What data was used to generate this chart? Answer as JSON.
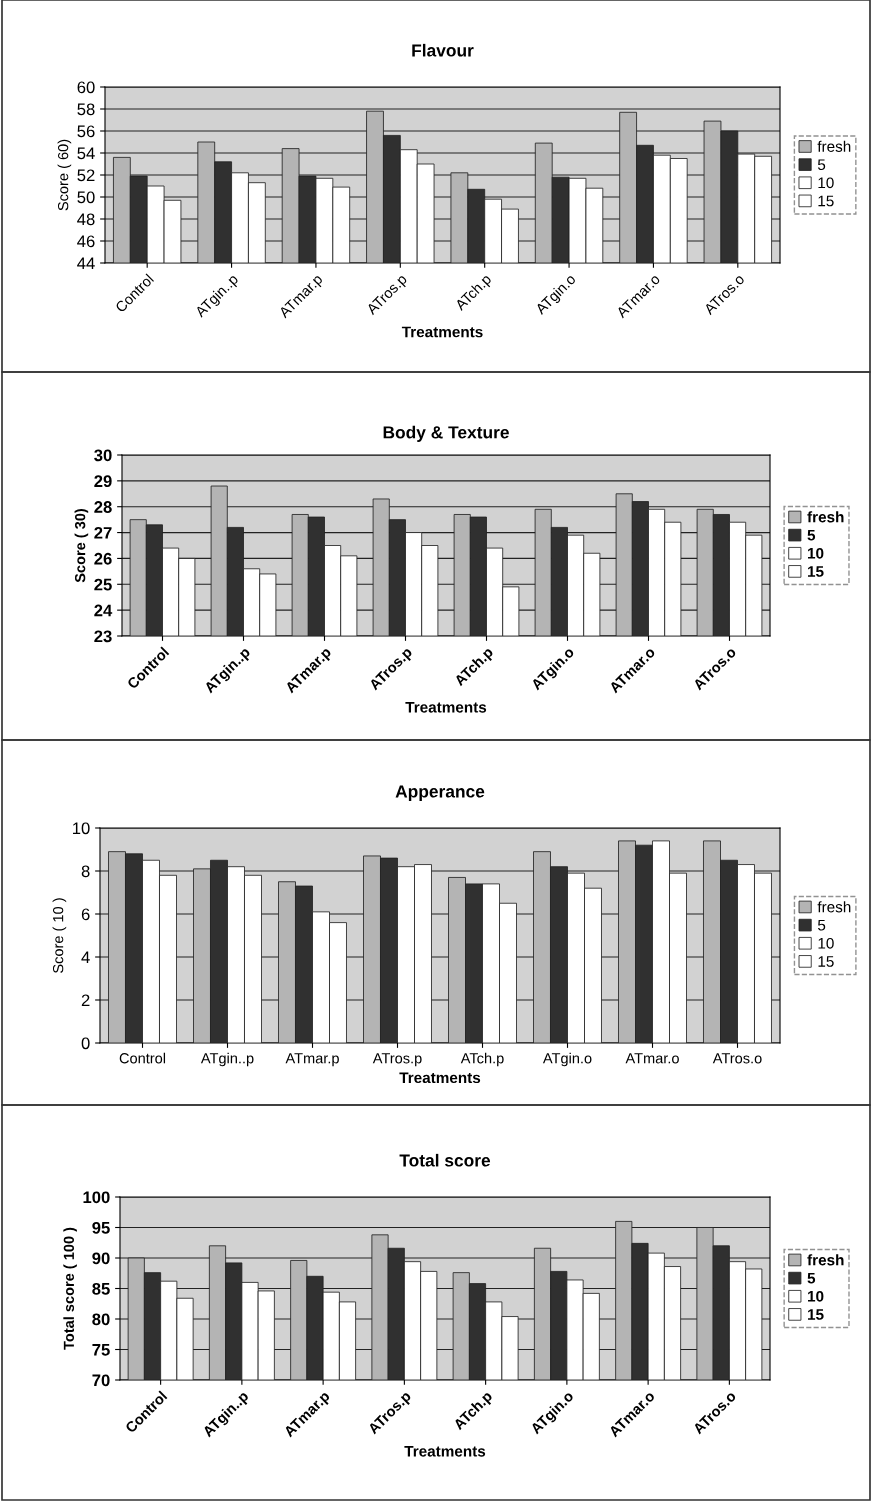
{
  "chart_data": [
    {
      "type": "bar",
      "title": "Flavour",
      "xlabel": "Treatments",
      "ylabel": "Score ( 60)",
      "categories": [
        "Control",
        "ATgin..p",
        "ATmar.p",
        "ATros.p",
        "ATch.p",
        "ATgin.o",
        "ATmar.o",
        "ATros.o"
      ],
      "ylim": [
        44,
        60
      ],
      "yticks": [
        44,
        46,
        48,
        50,
        52,
        54,
        56,
        58,
        60
      ],
      "grid": "y",
      "legend": "right",
      "series": [
        {
          "name": "fresh",
          "color": "#b4b4b4",
          "values": [
            53.6,
            55.0,
            54.4,
            57.8,
            52.2,
            54.9,
            57.7,
            56.9
          ]
        },
        {
          "name": "5",
          "color": "#303030",
          "values": [
            51.9,
            53.2,
            51.9,
            55.6,
            50.7,
            51.8,
            54.7,
            56.0
          ]
        },
        {
          "name": "10",
          "color": "#ffffff",
          "values": [
            51.0,
            52.2,
            51.7,
            54.3,
            49.8,
            51.7,
            53.8,
            53.9
          ]
        },
        {
          "name": "15",
          "color": "#ffffff",
          "values": [
            49.7,
            51.3,
            50.9,
            53.0,
            48.9,
            50.8,
            53.5,
            53.7
          ]
        }
      ]
    },
    {
      "type": "bar",
      "title": "Body & Texture",
      "xlabel": "Treatments",
      "ylabel": "Score ( 30)",
      "categories": [
        "Control",
        "ATgin..p",
        "ATmar.p",
        "ATros.p",
        "ATch.p",
        "ATgin.o",
        "ATmar.o",
        "ATros.o"
      ],
      "ylim": [
        23,
        30
      ],
      "yticks": [
        23,
        24,
        25,
        26,
        27,
        28,
        29,
        30
      ],
      "grid": "y",
      "legend": "right",
      "series": [
        {
          "name": "fresh",
          "color": "#b4b4b4",
          "values": [
            27.5,
            28.8,
            27.7,
            28.3,
            27.7,
            27.9,
            28.5,
            27.9
          ]
        },
        {
          "name": "5",
          "color": "#303030",
          "values": [
            27.3,
            27.2,
            27.6,
            27.5,
            27.6,
            27.2,
            28.2,
            27.7
          ]
        },
        {
          "name": "10",
          "color": "#ffffff",
          "values": [
            26.4,
            25.6,
            26.5,
            27.0,
            26.4,
            26.9,
            27.9,
            27.4
          ]
        },
        {
          "name": "15",
          "color": "#ffffff",
          "values": [
            26.0,
            25.4,
            26.1,
            26.5,
            24.9,
            26.2,
            27.4,
            26.9
          ]
        }
      ]
    },
    {
      "type": "bar",
      "title": "Apperance",
      "xlabel": "Treatments",
      "ylabel": "Score ( 10 )",
      "categories": [
        "Control",
        "ATgin..p",
        "ATmar.p",
        "ATros.p",
        "ATch.p",
        "ATgin.o",
        "ATmar.o",
        "ATros.o"
      ],
      "ylim": [
        0,
        10
      ],
      "yticks": [
        0,
        2,
        4,
        6,
        8,
        10
      ],
      "grid": "y",
      "legend": "right",
      "series": [
        {
          "name": "fresh",
          "color": "#b4b4b4",
          "values": [
            8.9,
            8.1,
            7.5,
            8.7,
            7.7,
            8.9,
            9.4,
            9.4
          ]
        },
        {
          "name": "5",
          "color": "#303030",
          "values": [
            8.8,
            8.5,
            7.3,
            8.6,
            7.4,
            8.2,
            9.2,
            8.5
          ]
        },
        {
          "name": "10",
          "color": "#ffffff",
          "values": [
            8.5,
            8.2,
            6.1,
            8.2,
            7.4,
            7.9,
            9.4,
            8.3
          ]
        },
        {
          "name": "15",
          "color": "#ffffff",
          "values": [
            7.8,
            7.8,
            5.6,
            8.3,
            6.5,
            7.2,
            7.9,
            7.9
          ]
        }
      ]
    },
    {
      "type": "bar",
      "title": "Total score",
      "xlabel": "Treatments",
      "ylabel": "Total score ( 100 )",
      "categories": [
        "Control",
        "ATgin..p",
        "ATmar.p",
        "ATros.p",
        "ATch.p",
        "ATgin.o",
        "ATmar.o",
        "ATros.o"
      ],
      "ylim": [
        70,
        100
      ],
      "yticks": [
        70,
        75,
        80,
        85,
        90,
        95,
        100
      ],
      "grid": "y",
      "legend": "right",
      "series": [
        {
          "name": "fresh",
          "color": "#b4b4b4",
          "values": [
            90.0,
            92.0,
            89.6,
            93.8,
            87.6,
            91.6,
            96.0,
            95.0
          ]
        },
        {
          "name": "5",
          "color": "#303030",
          "values": [
            87.6,
            89.2,
            87.0,
            91.6,
            85.8,
            87.8,
            92.4,
            92.0
          ]
        },
        {
          "name": "10",
          "color": "#ffffff",
          "values": [
            86.2,
            86.0,
            84.4,
            89.4,
            82.8,
            86.4,
            90.8,
            89.4
          ]
        },
        {
          "name": "15",
          "color": "#ffffff",
          "values": [
            83.4,
            84.6,
            82.8,
            87.8,
            80.4,
            84.2,
            88.6,
            88.2
          ]
        }
      ]
    }
  ]
}
